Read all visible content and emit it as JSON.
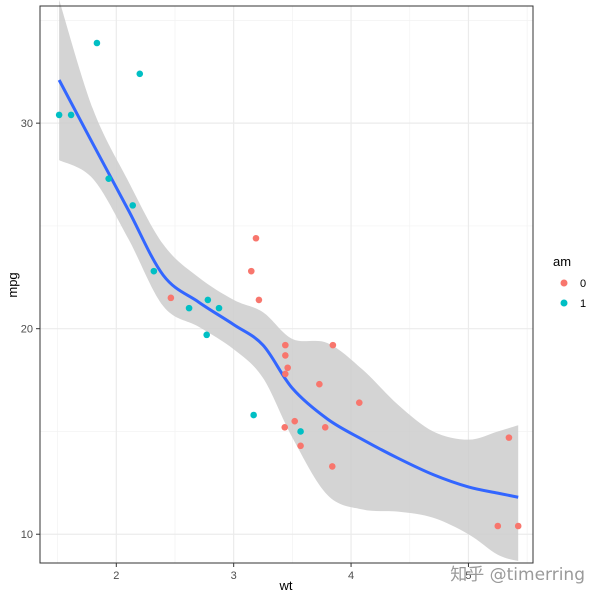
{
  "chart_data": {
    "type": "scatter",
    "xlabel": "wt",
    "ylabel": "mpg",
    "xlim": [
      1.35,
      5.55
    ],
    "ylim": [
      8.6,
      35.7
    ],
    "x_ticks": [
      2,
      3,
      4,
      5
    ],
    "y_ticks": [
      10,
      20,
      30
    ],
    "x_tick_labels": [
      "2",
      "3",
      "4",
      "5"
    ],
    "y_tick_labels": [
      "10",
      "20",
      "30"
    ],
    "grid": true,
    "legend": {
      "title": "am",
      "position": "right",
      "entries": [
        {
          "label": "0",
          "color": "#F8766D"
        },
        {
          "label": "1",
          "color": "#00BFC4"
        }
      ]
    },
    "series": [
      {
        "name": "0",
        "color": "#F8766D",
        "points": [
          [
            3.215,
            21.4
          ],
          [
            3.44,
            18.7
          ],
          [
            3.46,
            18.1
          ],
          [
            3.57,
            14.3
          ],
          [
            3.19,
            24.4
          ],
          [
            3.15,
            22.8
          ],
          [
            3.44,
            19.2
          ],
          [
            3.44,
            17.8
          ],
          [
            4.07,
            16.4
          ],
          [
            3.73,
            17.3
          ],
          [
            3.78,
            15.2
          ],
          [
            5.25,
            10.4
          ],
          [
            5.424,
            10.4
          ],
          [
            5.345,
            14.7
          ],
          [
            2.465,
            21.5
          ],
          [
            3.52,
            15.5
          ],
          [
            3.435,
            15.2
          ],
          [
            3.84,
            13.3
          ],
          [
            3.845,
            19.2
          ]
        ]
      },
      {
        "name": "1",
        "color": "#00BFC4",
        "points": [
          [
            2.62,
            21.0
          ],
          [
            2.875,
            21.0
          ],
          [
            2.32,
            22.8
          ],
          [
            2.2,
            32.4
          ],
          [
            1.615,
            30.4
          ],
          [
            1.835,
            33.9
          ],
          [
            1.935,
            27.3
          ],
          [
            2.14,
            26.0
          ],
          [
            1.513,
            30.4
          ],
          [
            3.17,
            15.8
          ],
          [
            2.77,
            19.7
          ],
          [
            2.78,
            21.4
          ],
          [
            3.57,
            15.0
          ]
        ]
      }
    ],
    "smooth": {
      "method": "loess",
      "color": "#3366FF",
      "band_color": "#CCCCCC",
      "x": [
        1.513,
        1.8,
        2.1,
        2.4,
        2.7,
        3.0,
        3.25,
        3.5,
        3.8,
        4.1,
        4.4,
        4.7,
        5.0,
        5.25,
        5.424
      ],
      "y": [
        32.1,
        29.0,
        25.8,
        22.6,
        21.3,
        20.2,
        19.2,
        17.1,
        15.6,
        14.6,
        13.7,
        12.9,
        12.3,
        12.0,
        11.8
      ],
      "ymin": [
        28.2,
        27.3,
        24.4,
        21.1,
        20.1,
        19.0,
        17.6,
        14.7,
        11.9,
        11.2,
        11.1,
        10.8,
        10.0,
        9.0,
        8.7
      ],
      "ymax": [
        36.0,
        30.7,
        27.2,
        24.1,
        22.5,
        21.4,
        20.8,
        19.5,
        19.3,
        18.0,
        16.3,
        15.0,
        14.6,
        15.0,
        15.3
      ]
    }
  },
  "watermark": "知乎 @timerring"
}
